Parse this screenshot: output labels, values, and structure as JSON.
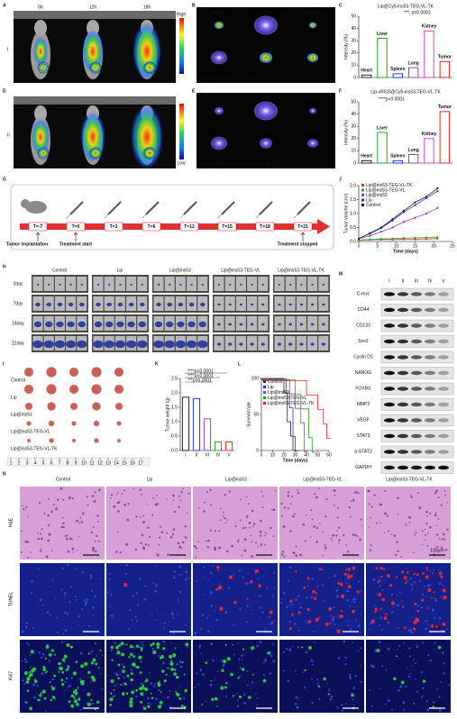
{
  "panel_letters": [
    "A",
    "B",
    "C",
    "D",
    "E",
    "F",
    "G",
    "H",
    "I",
    "J",
    "K",
    "L",
    "M",
    "N"
  ],
  "imaging": {
    "times": [
      "6h",
      "12h",
      "18h"
    ],
    "rows": [
      "I",
      "II"
    ],
    "scale": [
      "High",
      "Low"
    ]
  },
  "organs": {
    "labels": [
      "Heart",
      "Liver",
      "Spleen",
      "Lung",
      "Kidney",
      "Tumor"
    ],
    "captions": [
      "Lip@Cy5-ins53-TEG-VL-TK",
      "Lip-cRGD@Cy5-ins53-TEG-VL-TK"
    ]
  },
  "chart_data": [
    {
      "type": "bar",
      "title": "Lip@Cy5-ins53-TEG-VL-TK",
      "y_label": "Intensity (%)",
      "categories": [
        "Heart",
        "Liver",
        "Spleen",
        "Lung",
        "Kidney",
        "Tumor"
      ],
      "values": [
        2,
        32,
        3,
        8,
        38,
        13
      ],
      "colors": [
        "#222222",
        "#2aa12a",
        "#2438d8",
        "#9b3fc9",
        "#d63fd6",
        "#e02828"
      ],
      "ylim": [
        0,
        50
      ],
      "yticks": [
        0,
        10,
        20,
        30,
        40,
        50
      ],
      "annotation": "***, p=0.0002"
    },
    {
      "type": "bar",
      "title": "Lip-cRGD@Cy5-ins53-TEG-VL-TK",
      "y_label": "Intensity (%)",
      "categories": [
        "Heart",
        "Liver",
        "Spleen",
        "Lung",
        "Kidney",
        "Tumor"
      ],
      "values": [
        2,
        25,
        2,
        7,
        20,
        42
      ],
      "colors": [
        "#222222",
        "#2aa12a",
        "#2438d8",
        "#9b3fc9",
        "#d63fd6",
        "#e02828"
      ],
      "ylim": [
        0,
        50
      ],
      "yticks": [
        0,
        10,
        20,
        30,
        40,
        50
      ],
      "annotation": "****p<0.0001"
    },
    {
      "type": "line",
      "x_label": "Time (days)",
      "y_label": "Tumor volume (cm³)",
      "x": [
        0,
        3,
        6,
        9,
        12,
        15,
        18,
        21
      ],
      "xlim": [
        0,
        25
      ],
      "xticks": [
        0,
        5,
        10,
        15,
        20,
        25
      ],
      "ylim": [
        0,
        2
      ],
      "yticks": [
        {
          "value": 0,
          "label": "0.0"
        },
        {
          "value": 0.5,
          "label": "0.5"
        },
        {
          "value": 1,
          "label": "1.0"
        },
        {
          "value": 1.5,
          "label": "1.5"
        },
        {
          "value": 2,
          "label": "2.0"
        }
      ],
      "series": [
        {
          "name": "Lip@ins53-TEG-VL-TK",
          "color": "#e02828",
          "values": [
            0.05,
            0.06,
            0.07,
            0.07,
            0.08,
            0.08,
            0.09,
            0.1
          ]
        },
        {
          "name": "Lip@ins53-TEG-VL",
          "color": "#2aa12a",
          "values": [
            0.05,
            0.07,
            0.09,
            0.1,
            0.12,
            0.13,
            0.14,
            0.15
          ]
        },
        {
          "name": "Lip@ins53",
          "color": "#9b3fc9",
          "values": [
            0.1,
            0.2,
            0.35,
            0.5,
            0.7,
            0.85,
            1.0,
            1.2
          ]
        },
        {
          "name": "Lip",
          "color": "#2438d8",
          "values": [
            0.1,
            0.28,
            0.48,
            0.75,
            1.05,
            1.3,
            1.55,
            1.8
          ]
        },
        {
          "name": "Control",
          "color": "#222222",
          "values": [
            0.1,
            0.3,
            0.5,
            0.8,
            1.1,
            1.4,
            1.6,
            1.9
          ]
        }
      ]
    },
    {
      "type": "bar",
      "y_label": "Tumor weight (g)",
      "categories": [
        "I",
        "II",
        "III",
        "IV",
        "V"
      ],
      "values": [
        1.85,
        1.8,
        1.1,
        0.3,
        0.3
      ],
      "colors": [
        "#222222",
        "#2438d8",
        "#9b3fc9",
        "#2aa12a",
        "#e02828"
      ],
      "ylim": [
        0,
        2.5
      ],
      "yticks": [
        {
          "value": 0,
          "label": "0.0"
        },
        {
          "value": 0.5,
          "label": "0.5"
        },
        {
          "value": 1,
          "label": "1.0"
        },
        {
          "value": 1.5,
          "label": "1.5"
        },
        {
          "value": 2,
          "label": "2.0"
        },
        {
          "value": 2.5,
          "label": "2.5"
        }
      ],
      "annotations": [
        "****p<0.0001",
        "****p<0.0001",
        "***p=0.0001"
      ]
    },
    {
      "type": "step",
      "x_label": "Time (days)",
      "y_label": "Survival rate",
      "xlim": [
        0,
        60
      ],
      "xticks": [
        0,
        10,
        20,
        30,
        40,
        50,
        60
      ],
      "ylim": [
        0,
        100
      ],
      "yticks": [
        0,
        50,
        100
      ],
      "series": [
        {
          "name": "Control",
          "color": "#222222",
          "x": [
            0,
            20,
            23,
            26,
            28
          ],
          "values": [
            100,
            80,
            40,
            20,
            0
          ]
        },
        {
          "name": "Lip",
          "color": "#2438d8",
          "x": [
            0,
            22,
            25,
            28,
            30
          ],
          "values": [
            100,
            80,
            60,
            20,
            0
          ]
        },
        {
          "name": "Lip@ins53",
          "color": "#9b3fc9",
          "x": [
            0,
            25,
            30,
            35,
            38
          ],
          "values": [
            100,
            80,
            60,
            40,
            0
          ]
        },
        {
          "name": "Lip@ins53-TEG-VL",
          "color": "#2aa12a",
          "x": [
            0,
            30,
            35,
            42,
            45
          ],
          "values": [
            100,
            80,
            60,
            20,
            0
          ]
        },
        {
          "name": "Lip@ins53-TEG-VL-TK",
          "color": "#e02828",
          "x": [
            0,
            40,
            50,
            55,
            58
          ],
          "values": [
            100,
            80,
            60,
            40,
            20
          ]
        }
      ]
    }
  ],
  "timeline": {
    "days": [
      "T=-7",
      "T=0",
      "T=3",
      "T=6",
      "T=12",
      "T=15",
      "T=18",
      "T=21"
    ],
    "events": [
      "Tumor implantation",
      "Treatment start",
      "Treatment stopped"
    ]
  },
  "h_panel": {
    "groups": [
      "Control",
      "Lip",
      "Lip@ins53",
      "Lip@ins53-TEG-VL",
      "Lip@ins53-TEG-VL-TK"
    ],
    "days": [
      "0day",
      "7day",
      "14day",
      "21day"
    ]
  },
  "i_panel": {
    "groups": [
      "Control",
      "Lip",
      "Lip@ins53",
      "Lip@ins53-TEG-VL",
      "Lip@ins53-TEG-VL-TK"
    ],
    "ruler": [
      1,
      2,
      3,
      4,
      5,
      6,
      7,
      8,
      9,
      10,
      11,
      12,
      13,
      14,
      15,
      16,
      17
    ]
  },
  "m_panel": {
    "lanes": [
      "I",
      "II",
      "III",
      "IV",
      "V"
    ],
    "proteins": [
      "C-myc",
      "CD44",
      "CD133",
      "Sox2",
      "Cyclin D1",
      "NANOG",
      "FOXM1",
      "MMP2",
      "VEGF",
      "STAT3",
      "p-STAT3",
      "GAPDH"
    ]
  },
  "n_panel": {
    "groups": [
      "Control",
      "Lip",
      "Lip@ins53",
      "Lip@ins53-TEG-VL",
      "Lip@ins53-TEG-VL-TK"
    ],
    "stains": [
      "H&E",
      "TUNEL",
      "Ki67"
    ],
    "scale": [
      "100μm",
      "100μm",
      "100μm"
    ]
  }
}
